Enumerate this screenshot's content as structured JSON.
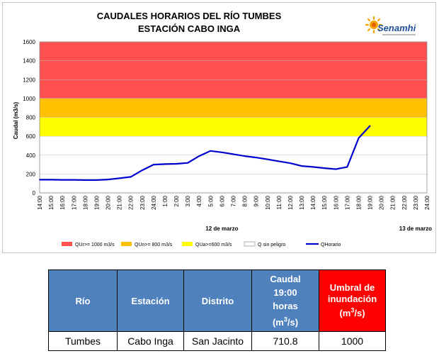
{
  "chart_data": {
    "type": "line",
    "title": "CAUDALES HORARIOS DEL RÍO TUMBES",
    "subtitle": "ESTACIÓN CABO INGA",
    "logo_text": "Senamhi",
    "ylabel": "Caudal (m3/s)",
    "ylim": [
      0,
      1600
    ],
    "yticks": [
      "0",
      "200",
      "400",
      "600",
      "800",
      "1000",
      "1200",
      "1400",
      "1600"
    ],
    "x_labels": [
      "14:00",
      "15:00",
      "16:00",
      "17:00",
      "18:00",
      "19:00",
      "20:00",
      "21:00",
      "22:00",
      "23:00",
      "24:00",
      "1:00",
      "2:00",
      "3:00",
      "4:00",
      "5:00",
      "6:00",
      "7:00",
      "8:00",
      "9:00",
      "10:00",
      "11:00",
      "12:00",
      "13:00",
      "14:00",
      "15:00",
      "16:00",
      "17:00",
      "18:00",
      "19:00",
      "20:00",
      "21:00",
      "22:00",
      "23:00",
      "24:00"
    ],
    "date_labels": [
      {
        "text": "12 de marzo",
        "at_index": 16
      },
      {
        "text": "13 de marzo",
        "at_index": 33
      }
    ],
    "bands": [
      {
        "name": "QUr>= 1000 m3/s",
        "from": 1000,
        "to": 1600,
        "color": "#ff5050"
      },
      {
        "name": "QUn>= 800 m3/s",
        "from": 800,
        "to": 1000,
        "color": "#ffc000"
      },
      {
        "name": "QUa>=600 m3/s",
        "from": 600,
        "to": 800,
        "color": "#ffff00"
      },
      {
        "name": "Q sin peligro",
        "from": 0,
        "to": 600,
        "color": "#ffffff"
      }
    ],
    "series": [
      {
        "name": "QHorario",
        "color": "#0000cc",
        "values": [
          140,
          140,
          138,
          138,
          136,
          136,
          142,
          155,
          170,
          240,
          300,
          305,
          308,
          318,
          390,
          445,
          430,
          410,
          390,
          375,
          355,
          335,
          315,
          285,
          275,
          262,
          252,
          275,
          580,
          710.8
        ]
      }
    ],
    "grid": true,
    "legend_position": "bottom"
  },
  "table": {
    "headers": {
      "rio": "Río",
      "estacion": "Estación",
      "distrito": "Distrito",
      "caudal_line1": "Caudal",
      "caudal_line2": "19:00",
      "caudal_line3": "horas",
      "caudal_unit_pre": "(m",
      "caudal_unit_sup": "3",
      "caudal_unit_post": "/s)",
      "umbral_line1": "Umbral de",
      "umbral_line2": "inundación",
      "umbral_unit_pre": "(m",
      "umbral_unit_sup": "3",
      "umbral_unit_post": "/s)"
    },
    "row": {
      "rio": "Tumbes",
      "estacion": "Cabo Inga",
      "distrito": "San Jacinto",
      "caudal": "710.8",
      "umbral": "1000"
    }
  }
}
